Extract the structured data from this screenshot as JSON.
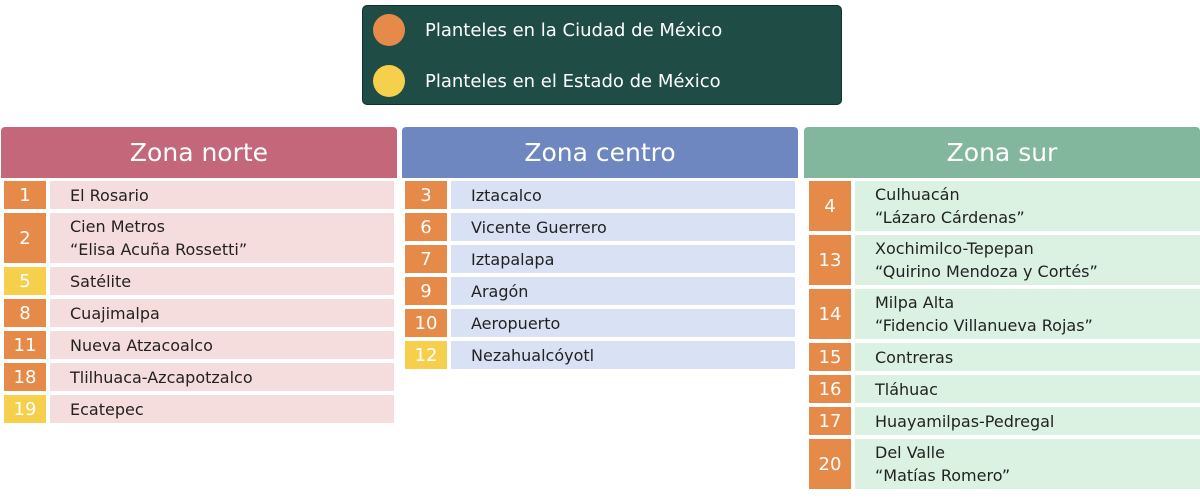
{
  "legend": {
    "items": [
      {
        "label": "Planteles en la Ciudad de México",
        "color": "#e58a49"
      },
      {
        "label": "Planteles en el Estado de México",
        "color": "#f6d04d"
      }
    ]
  },
  "colors": {
    "cdmx": "#e58a49",
    "edomex": "#f6d04d"
  },
  "zones": [
    {
      "title": "Zona norte",
      "header_color": "#c5677b",
      "row_color": "#f5dcdd",
      "rows": [
        {
          "num": "1",
          "line1": "El Rosario",
          "line2": "",
          "region": "cdmx"
        },
        {
          "num": "2",
          "line1": "Cien Metros",
          "line2": "“Elisa Acuña Rossetti”",
          "region": "cdmx"
        },
        {
          "num": "5",
          "line1": "Satélite",
          "line2": "",
          "region": "edomex"
        },
        {
          "num": "8",
          "line1": "Cuajimalpa",
          "line2": "",
          "region": "cdmx"
        },
        {
          "num": "11",
          "line1": "Nueva Atzacoalco",
          "line2": "",
          "region": "cdmx"
        },
        {
          "num": "18",
          "line1": "Tlilhuaca-Azcapotzalco",
          "line2": "",
          "region": "cdmx"
        },
        {
          "num": "19",
          "line1": "Ecatepec",
          "line2": "",
          "region": "edomex"
        }
      ]
    },
    {
      "title": "Zona centro",
      "header_color": "#6e87c1",
      "row_color": "#d9e2f4",
      "rows": [
        {
          "num": "3",
          "line1": "Iztacalco",
          "line2": "",
          "region": "cdmx"
        },
        {
          "num": "6",
          "line1": "Vicente Guerrero",
          "line2": "",
          "region": "cdmx"
        },
        {
          "num": "7",
          "line1": "Iztapalapa",
          "line2": "",
          "region": "cdmx"
        },
        {
          "num": "9",
          "line1": "Aragón",
          "line2": "",
          "region": "cdmx"
        },
        {
          "num": "10",
          "line1": "Aeropuerto",
          "line2": "",
          "region": "cdmx"
        },
        {
          "num": "12",
          "line1": "Nezahualcóyotl",
          "line2": "",
          "region": "edomex"
        }
      ]
    },
    {
      "title": "Zona sur",
      "header_color": "#83b79d",
      "row_color": "#dbf2e3",
      "rows": [
        {
          "num": "4",
          "line1": "Culhuacán",
          "line2": "“Lázaro Cárdenas”",
          "region": "cdmx"
        },
        {
          "num": "13",
          "line1": "Xochimilco-Tepepan",
          "line2": "“Quirino Mendoza y Cortés”",
          "region": "cdmx"
        },
        {
          "num": "14",
          "line1": "Milpa Alta",
          "line2": "“Fidencio Villanueva Rojas”",
          "region": "cdmx"
        },
        {
          "num": "15",
          "line1": "Contreras",
          "line2": "",
          "region": "cdmx"
        },
        {
          "num": "16",
          "line1": "Tláhuac",
          "line2": "",
          "region": "cdmx"
        },
        {
          "num": "17",
          "line1": "Huayamilpas-Pedregal",
          "line2": "",
          "region": "cdmx"
        },
        {
          "num": "20",
          "line1": "Del Valle",
          "line2": "“Matías Romero”",
          "region": "cdmx"
        }
      ]
    }
  ]
}
